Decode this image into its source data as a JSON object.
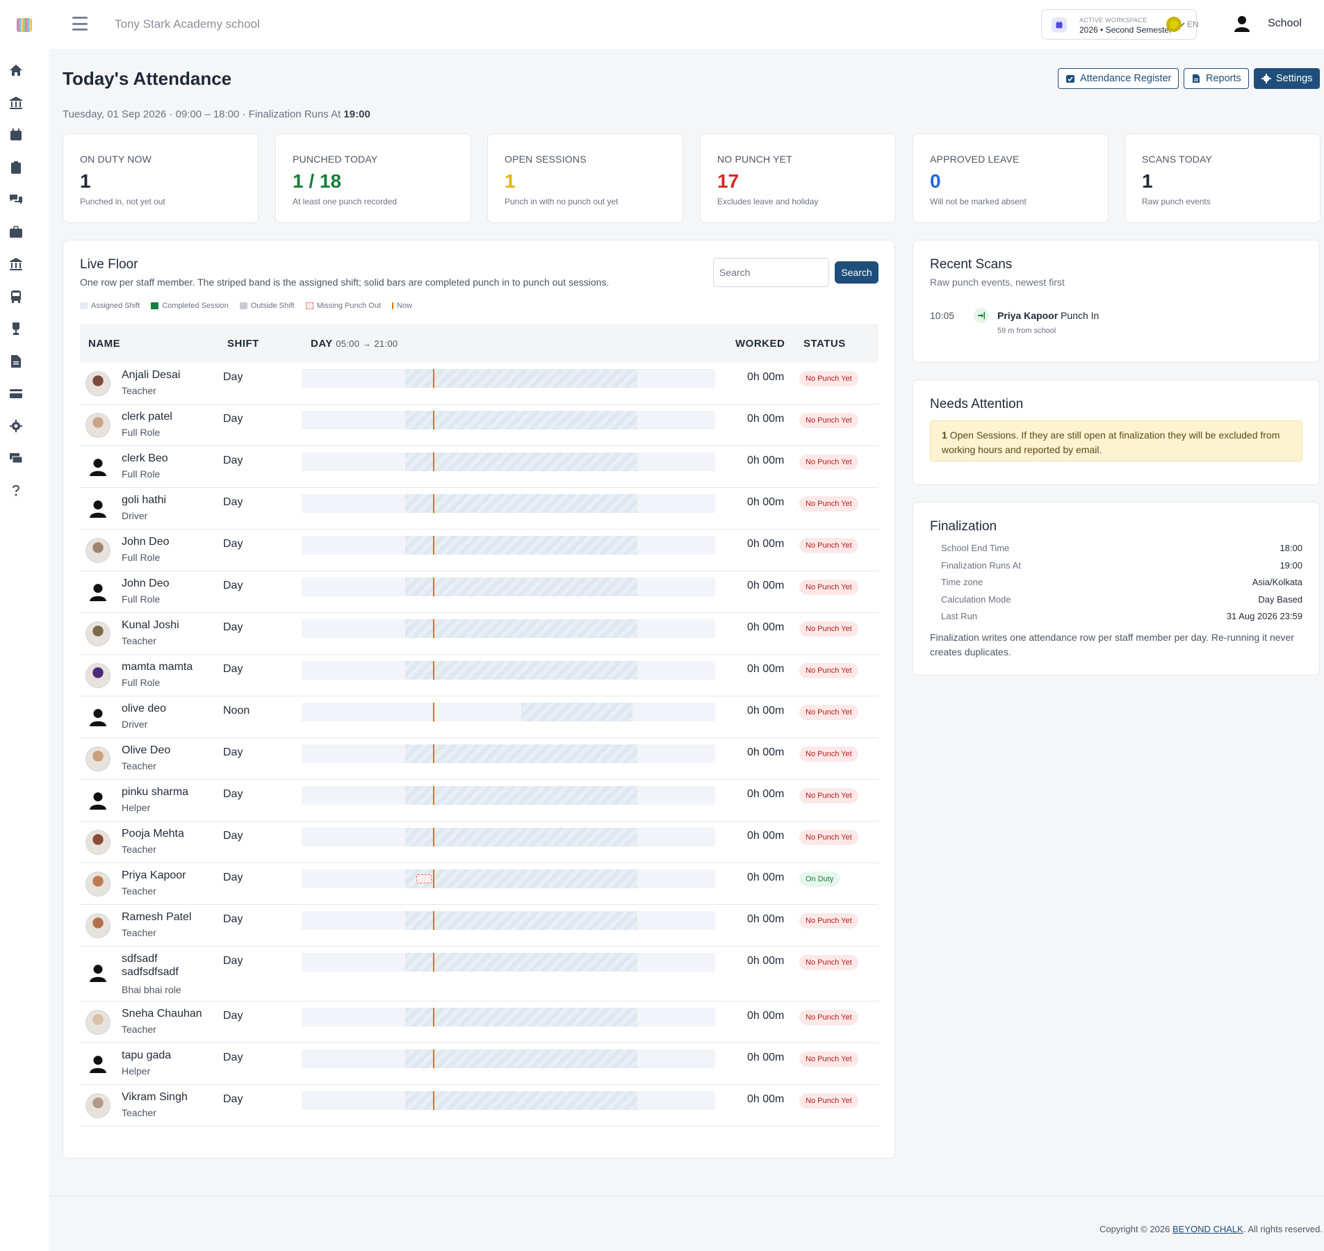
{
  "app": {
    "school_name": "Tony Stark Academy school",
    "user_name": "School",
    "lang": "EN"
  },
  "workspace": {
    "label": "ACTIVE WORKSPACE",
    "value": "2026 • Second Semester"
  },
  "rail_icons": [
    "home-icon",
    "bank-icon",
    "calendar-icon",
    "clipboard-icon",
    "chat-icon",
    "briefcase-icon",
    "institution-icon",
    "bus-icon",
    "trophy-icon",
    "document-icon",
    "card-icon",
    "gear-icon",
    "money-icon",
    "help-icon"
  ],
  "page": {
    "title": "Today's Attendance",
    "subtitle_prefix": "Tuesday, 01 Sep 2026 · 09:00 – 18:00 · Finalization Runs At ",
    "subtitle_time": "19:00",
    "buttons": {
      "register": "Attendance Register",
      "reports": "Reports",
      "settings": "Settings"
    }
  },
  "stats": [
    {
      "label": "ON DUTY NOW",
      "value": "1",
      "sub": "Punched in, not yet out",
      "color": "#1f2937"
    },
    {
      "label": "PUNCHED TODAY",
      "value": "1 / 18",
      "sub": "At least one punch recorded",
      "color": "#15803d"
    },
    {
      "label": "OPEN SESSIONS",
      "value": "1",
      "sub": "Punch in with no punch out yet",
      "color": "#eab308"
    },
    {
      "label": "NO PUNCH YET",
      "value": "17",
      "sub": "Excludes leave and holiday",
      "color": "#dc2626"
    },
    {
      "label": "APPROVED LEAVE",
      "value": "0",
      "sub": "Will not be marked absent",
      "color": "#2563eb"
    },
    {
      "label": "SCANS TODAY",
      "value": "1",
      "sub": "Raw punch events",
      "color": "#1f2937"
    }
  ],
  "live_floor": {
    "title": "Live Floor",
    "description": "One row per staff member. The striped band is the assigned shift; solid bars are completed punch in to punch out sessions.",
    "search_placeholder": "Search",
    "search_button": "Search",
    "legend": [
      {
        "label": "Assigned Shift",
        "color": "#e3eaf2"
      },
      {
        "label": "Completed Session",
        "color": "#15803d"
      },
      {
        "label": "Outside Shift",
        "color": "#c7ccd3"
      },
      {
        "label": "Missing Punch Out",
        "color": "#e57373"
      },
      {
        "label": "Now",
        "color": "#d97706"
      }
    ],
    "columns": {
      "name": "NAME",
      "shift": "SHIFT",
      "day": "DAY",
      "day_range": "05:00 → 21:00",
      "worked": "WORKED",
      "status": "STATUS"
    },
    "day_start_hour": 5,
    "day_end_hour": 21,
    "now_hour": 10.08,
    "rows": [
      {
        "name": "Anjali Desai",
        "role": "Teacher",
        "shift": "Day",
        "shift_start": 9,
        "shift_end": 18,
        "worked": "0h 00m",
        "status": "No Punch Yet",
        "tone": "red",
        "avatar": "photo",
        "avatar_color": "#7a4a3a"
      },
      {
        "name": "clerk patel",
        "role": "Full Role",
        "shift": "Day",
        "shift_start": 9,
        "shift_end": 18,
        "worked": "0h 00m",
        "status": "No Punch Yet",
        "tone": "red",
        "avatar": "photo",
        "avatar_color": "#c9a48a"
      },
      {
        "name": "clerk Beo",
        "role": "Full Role",
        "shift": "Day",
        "shift_start": 9,
        "shift_end": 18,
        "worked": "0h 00m",
        "status": "No Punch Yet",
        "tone": "red",
        "avatar": "generic"
      },
      {
        "name": "goli hathi",
        "role": "Driver",
        "shift": "Day",
        "shift_start": 9,
        "shift_end": 18,
        "worked": "0h 00m",
        "status": "No Punch Yet",
        "tone": "red",
        "avatar": "generic"
      },
      {
        "name": "John Deo",
        "role": "Full Role",
        "shift": "Day",
        "shift_start": 9,
        "shift_end": 18,
        "worked": "0h 00m",
        "status": "No Punch Yet",
        "tone": "red",
        "avatar": "photo",
        "avatar_color": "#a0846e"
      },
      {
        "name": "John Deo",
        "role": "Full Role",
        "shift": "Day",
        "shift_start": 9,
        "shift_end": 18,
        "worked": "0h 00m",
        "status": "No Punch Yet",
        "tone": "red",
        "avatar": "generic"
      },
      {
        "name": "Kunal Joshi",
        "role": "Teacher",
        "shift": "Day",
        "shift_start": 9,
        "shift_end": 18,
        "worked": "0h 00m",
        "status": "No Punch Yet",
        "tone": "red",
        "avatar": "photo",
        "avatar_color": "#7c6a4c"
      },
      {
        "name": "mamta mamta",
        "role": "Full Role",
        "shift": "Day",
        "shift_start": 9,
        "shift_end": 18,
        "worked": "0h 00m",
        "status": "No Punch Yet",
        "tone": "red",
        "avatar": "photo",
        "avatar_color": "#4b2a7a"
      },
      {
        "name": "olive deo",
        "role": "Driver",
        "shift": "Noon",
        "shift_start": 13.5,
        "shift_end": 17.8,
        "worked": "0h 00m",
        "status": "No Punch Yet",
        "tone": "red",
        "avatar": "generic"
      },
      {
        "name": "Olive Deo",
        "role": "Teacher",
        "shift": "Day",
        "shift_start": 9,
        "shift_end": 18,
        "worked": "0h 00m",
        "status": "No Punch Yet",
        "tone": "red",
        "avatar": "photo",
        "avatar_color": "#c9a07a"
      },
      {
        "name": "pinku sharma",
        "role": "Helper",
        "shift": "Day",
        "shift_start": 9,
        "shift_end": 18,
        "worked": "0h 00m",
        "status": "No Punch Yet",
        "tone": "red",
        "avatar": "generic"
      },
      {
        "name": "Pooja Mehta",
        "role": "Teacher",
        "shift": "Day",
        "shift_start": 9,
        "shift_end": 18,
        "worked": "0h 00m",
        "status": "No Punch Yet",
        "tone": "red",
        "avatar": "photo",
        "avatar_color": "#8a4a3a"
      },
      {
        "name": "Priya Kapoor",
        "role": "Teacher",
        "shift": "Day",
        "shift_start": 9,
        "shift_end": 18,
        "worked": "0h 00m",
        "status": "On Duty",
        "tone": "green",
        "avatar": "photo",
        "avatar_color": "#c07a50",
        "missing_punch_out": true
      },
      {
        "name": "Ramesh Patel",
        "role": "Teacher",
        "shift": "Day",
        "shift_start": 9,
        "shift_end": 18,
        "worked": "0h 00m",
        "status": "No Punch Yet",
        "tone": "red",
        "avatar": "photo",
        "avatar_color": "#b0704a"
      },
      {
        "name": "sdfsadf sadfsdfsadf",
        "role": "Bhai bhai role",
        "shift": "Day",
        "shift_start": 9,
        "shift_end": 18,
        "worked": "0h 00m",
        "status": "No Punch Yet",
        "tone": "red",
        "avatar": "generic",
        "tall": true
      },
      {
        "name": "Sneha Chauhan",
        "role": "Teacher",
        "shift": "Day",
        "shift_start": 9,
        "shift_end": 18,
        "worked": "0h 00m",
        "status": "No Punch Yet",
        "tone": "red",
        "avatar": "photo",
        "avatar_color": "#d8c0a8"
      },
      {
        "name": "tapu gada",
        "role": "Helper",
        "shift": "Day",
        "shift_start": 9,
        "shift_end": 18,
        "worked": "0h 00m",
        "status": "No Punch Yet",
        "tone": "red",
        "avatar": "generic"
      },
      {
        "name": "Vikram Singh",
        "role": "Teacher",
        "shift": "Day",
        "shift_start": 9,
        "shift_end": 18,
        "worked": "0h 00m",
        "status": "No Punch Yet",
        "tone": "red",
        "avatar": "photo",
        "avatar_color": "#b09a88"
      }
    ]
  },
  "recent_scans": {
    "title": "Recent Scans",
    "subtitle": "Raw punch events, newest first",
    "items": [
      {
        "time": "10:05",
        "name": "Priya Kapoor",
        "action": "Punch In",
        "distance": "59 m from school"
      }
    ]
  },
  "needs_attention": {
    "title": "Needs Attention",
    "count": "1",
    "message": " Open Sessions. If they are still open at finalization they will be excluded from working hours and reported by email."
  },
  "finalization": {
    "title": "Finalization",
    "rows": [
      {
        "label": "School End Time",
        "value": "18:00"
      },
      {
        "label": "Finalization Runs At",
        "value": "19:00"
      },
      {
        "label": "Time zone",
        "value": "Asia/Kolkata"
      },
      {
        "label": "Calculation Mode",
        "value": "Day Based"
      },
      {
        "label": "Last Run",
        "value": "31 Aug 2026 23:59"
      }
    ],
    "note": "Finalization writes one attendance row per staff member per day. Re-running it never creates duplicates."
  },
  "footer": {
    "prefix": "Copyright © 2026 ",
    "link": "BEYOND CHALK",
    "suffix": ". All rights reserved."
  }
}
